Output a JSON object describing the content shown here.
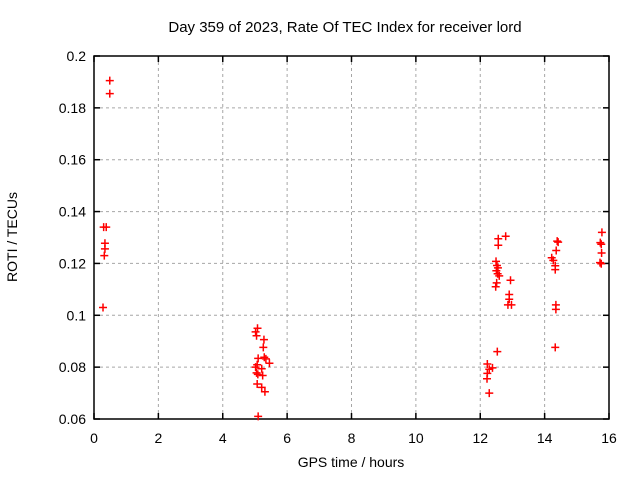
{
  "chart_data": {
    "type": "scatter",
    "title": "Day 359 of 2023, Rate Of TEC Index for receiver lord",
    "xlabel": "GPS time / hours",
    "ylabel": "ROTI / TECUs",
    "xlim": [
      0,
      16
    ],
    "ylim": [
      0.06,
      0.2
    ],
    "xticks": [
      [
        0,
        "0"
      ],
      [
        2,
        "2"
      ],
      [
        4,
        "4"
      ],
      [
        6,
        "6"
      ],
      [
        8,
        "8"
      ],
      [
        10,
        "10"
      ],
      [
        12,
        "12"
      ],
      [
        14,
        "14"
      ],
      [
        16,
        "16"
      ]
    ],
    "yticks": [
      [
        0.06,
        "0.06"
      ],
      [
        0.08,
        "0.08"
      ],
      [
        0.1,
        "0.1"
      ],
      [
        0.12,
        "0.12"
      ],
      [
        0.14,
        "0.14"
      ],
      [
        0.16,
        "0.16"
      ],
      [
        0.18,
        "0.18"
      ],
      [
        0.2,
        "0.2"
      ]
    ],
    "grid": true,
    "legend_position": "none",
    "marker": "plus",
    "colors": {
      "marker": "#ff0000",
      "grid": "#a6a6a6",
      "axis": "#000000",
      "background": "#ffffff"
    },
    "points": [
      [
        0.49,
        0.1905
      ],
      [
        0.49,
        0.1855
      ],
      [
        0.3,
        0.134
      ],
      [
        0.38,
        0.134
      ],
      [
        0.34,
        0.1278
      ],
      [
        0.34,
        0.1256
      ],
      [
        0.32,
        0.123
      ],
      [
        0.28,
        0.103
      ],
      [
        5.08,
        0.095
      ],
      [
        5.02,
        0.0936
      ],
      [
        5.05,
        0.0921
      ],
      [
        5.28,
        0.0906
      ],
      [
        5.26,
        0.0876
      ],
      [
        5.29,
        0.0838
      ],
      [
        5.34,
        0.0832
      ],
      [
        5.1,
        0.0834
      ],
      [
        5.45,
        0.0815
      ],
      [
        5.07,
        0.0809
      ],
      [
        5.02,
        0.08
      ],
      [
        5.21,
        0.0794
      ],
      [
        5.05,
        0.0778
      ],
      [
        5.09,
        0.0772
      ],
      [
        5.24,
        0.0768
      ],
      [
        5.07,
        0.0735
      ],
      [
        5.21,
        0.0722
      ],
      [
        5.31,
        0.0705
      ],
      [
        5.1,
        0.061
      ],
      [
        12.56,
        0.1295
      ],
      [
        12.79,
        0.1305
      ],
      [
        12.56,
        0.127
      ],
      [
        12.49,
        0.1208
      ],
      [
        12.52,
        0.1192
      ],
      [
        12.55,
        0.1183
      ],
      [
        12.5,
        0.1172
      ],
      [
        12.54,
        0.116
      ],
      [
        12.59,
        0.1152
      ],
      [
        12.94,
        0.1135
      ],
      [
        12.51,
        0.1125
      ],
      [
        12.48,
        0.111
      ],
      [
        12.9,
        0.108
      ],
      [
        12.9,
        0.1062
      ],
      [
        12.86,
        0.104
      ],
      [
        12.97,
        0.104
      ],
      [
        12.53,
        0.086
      ],
      [
        12.22,
        0.0812
      ],
      [
        12.38,
        0.0797
      ],
      [
        12.28,
        0.0792
      ],
      [
        12.22,
        0.0776
      ],
      [
        12.21,
        0.0755
      ],
      [
        12.28,
        0.07
      ],
      [
        14.39,
        0.1286
      ],
      [
        14.42,
        0.1282
      ],
      [
        14.36,
        0.125
      ],
      [
        14.22,
        0.1222
      ],
      [
        14.27,
        0.1212
      ],
      [
        14.33,
        0.1191
      ],
      [
        14.33,
        0.1176
      ],
      [
        14.35,
        0.104
      ],
      [
        14.35,
        0.1023
      ],
      [
        14.33,
        0.0876
      ],
      [
        15.78,
        0.132
      ],
      [
        15.73,
        0.128
      ],
      [
        15.76,
        0.1274
      ],
      [
        15.77,
        0.124
      ],
      [
        15.72,
        0.1203
      ],
      [
        15.76,
        0.1199
      ]
    ]
  }
}
